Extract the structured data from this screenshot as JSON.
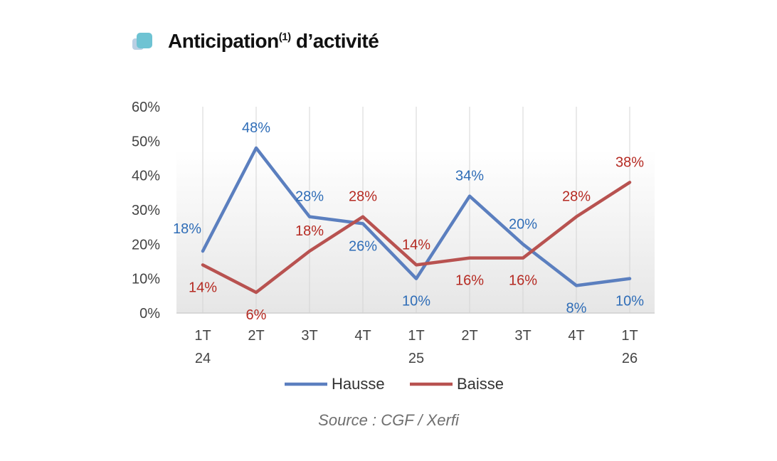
{
  "header": {
    "title_main": "Anticipation",
    "title_sup": "(1)",
    "title_rest": " d’activité",
    "icon": "stacked-squares-icon"
  },
  "source": "Source : CGF / Xerfi",
  "chart_data": {
    "type": "line",
    "title": "Anticipation(1) d’activité",
    "categories": [
      [
        "1T",
        "24"
      ],
      [
        "2T",
        ""
      ],
      [
        "3T",
        ""
      ],
      [
        "4T",
        ""
      ],
      [
        "1T",
        "25"
      ],
      [
        "2T",
        ""
      ],
      [
        "3T",
        ""
      ],
      [
        "4T",
        ""
      ],
      [
        "1T",
        "26"
      ]
    ],
    "y_ticks": [
      "0%",
      "10%",
      "20%",
      "30%",
      "40%",
      "50%",
      "60%"
    ],
    "ylim": [
      0,
      60
    ],
    "grid": "vertical",
    "legend": "bottom",
    "series": [
      {
        "name": "Hausse",
        "color": "#5b7fbf",
        "label_color": "#2f6db7",
        "values": [
          18,
          48,
          28,
          26,
          10,
          34,
          20,
          8,
          10
        ],
        "labels": [
          "18%",
          "48%",
          "28%",
          "26%",
          "10%",
          "34%",
          "20%",
          "8%",
          "10%"
        ]
      },
      {
        "name": "Baisse",
        "color": "#b85250",
        "label_color": "#b52a22",
        "values": [
          14,
          6,
          18,
          28,
          14,
          16,
          16,
          28,
          38
        ],
        "labels": [
          "14%",
          "6%",
          "18%",
          "28%",
          "14%",
          "16%",
          "16%",
          "28%",
          "38%"
        ]
      }
    ]
  }
}
